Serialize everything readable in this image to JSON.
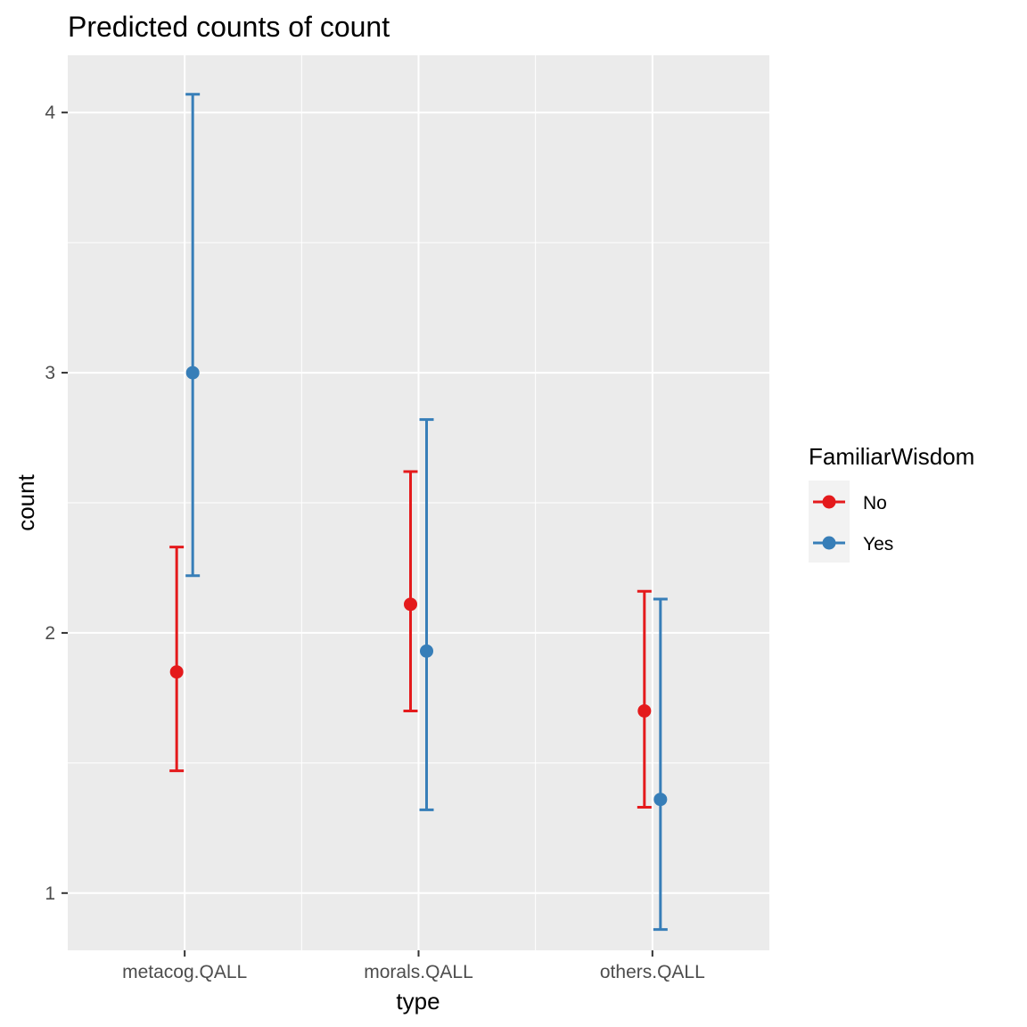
{
  "chart_data": {
    "type": "errorbar-point",
    "title": "Predicted counts of count",
    "xlabel": "type",
    "ylabel": "count",
    "categories": [
      "metacog.QALL",
      "morals.QALL",
      "others.QALL"
    ],
    "ylim": [
      0.78,
      4.22
    ],
    "y_ticks": [
      1,
      2,
      3,
      4
    ],
    "y_minor_ticks": [
      1.5,
      2.5,
      3.5
    ],
    "grid": true,
    "legend": {
      "title": "FamiliarWisdom",
      "position": "right"
    },
    "series": [
      {
        "name": "No",
        "color": "#e41a1c",
        "values": [
          1.85,
          2.11,
          1.7
        ],
        "lower": [
          1.47,
          1.7,
          1.33
        ],
        "upper": [
          2.33,
          2.62,
          2.16
        ]
      },
      {
        "name": "Yes",
        "color": "#377eb8",
        "values": [
          3.0,
          1.93,
          1.36
        ],
        "lower": [
          2.22,
          1.32,
          0.86
        ],
        "upper": [
          4.07,
          2.82,
          2.13
        ]
      }
    ]
  }
}
